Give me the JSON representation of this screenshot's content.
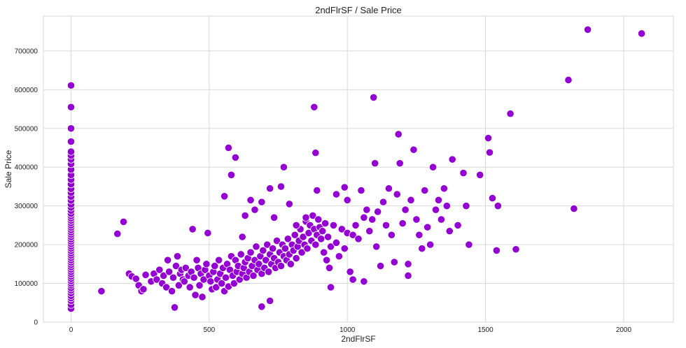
{
  "chart_data": {
    "type": "scatter",
    "title": "2ndFlrSF / Sale Price",
    "xlabel": "2ndFlrSF",
    "ylabel": "Sale Price",
    "xlim": [
      -100,
      2180
    ],
    "ylim": [
      0,
      790000
    ],
    "xticks": [
      "0",
      "500",
      "1000",
      "1500",
      "2000"
    ],
    "yticks": [
      "0",
      "100000",
      "200000",
      "300000",
      "400000",
      "500000",
      "600000",
      "700000"
    ],
    "grid": true,
    "color": "#9400D3",
    "series": [
      {
        "points": [
          [
            0,
            35000
          ],
          [
            0,
            45000
          ],
          [
            0,
            55000
          ],
          [
            0,
            62000
          ],
          [
            0,
            68000
          ],
          [
            0,
            75000
          ],
          [
            0,
            82000
          ],
          [
            0,
            88000
          ],
          [
            0,
            95000
          ],
          [
            0,
            100000
          ],
          [
            0,
            106000
          ],
          [
            0,
            112000
          ],
          [
            0,
            118000
          ],
          [
            0,
            124000
          ],
          [
            0,
            130000
          ],
          [
            0,
            136000
          ],
          [
            0,
            142000
          ],
          [
            0,
            148000
          ],
          [
            0,
            154000
          ],
          [
            0,
            160000
          ],
          [
            0,
            166000
          ],
          [
            0,
            172000
          ],
          [
            0,
            178000
          ],
          [
            0,
            184000
          ],
          [
            0,
            190000
          ],
          [
            0,
            196000
          ],
          [
            0,
            202000
          ],
          [
            0,
            208000
          ],
          [
            0,
            214000
          ],
          [
            0,
            220000
          ],
          [
            0,
            226000
          ],
          [
            0,
            232000
          ],
          [
            0,
            238000
          ],
          [
            0,
            244000
          ],
          [
            0,
            250000
          ],
          [
            0,
            256000
          ],
          [
            0,
            262000
          ],
          [
            0,
            268000
          ],
          [
            0,
            274000
          ],
          [
            0,
            280000
          ],
          [
            0,
            288000
          ],
          [
            0,
            296000
          ],
          [
            0,
            304000
          ],
          [
            0,
            314000
          ],
          [
            0,
            324000
          ],
          [
            0,
            334000
          ],
          [
            0,
            344000
          ],
          [
            0,
            356000
          ],
          [
            0,
            368000
          ],
          [
            0,
            380000
          ],
          [
            0,
            394000
          ],
          [
            0,
            408000
          ],
          [
            0,
            420000
          ],
          [
            0,
            430000
          ],
          [
            0,
            440000
          ],
          [
            0,
            466000
          ],
          [
            0,
            500000
          ],
          [
            0,
            555000
          ],
          [
            0,
            611000
          ],
          [
            110,
            80000
          ],
          [
            168,
            228000
          ],
          [
            190,
            259000
          ],
          [
            210,
            125000
          ],
          [
            220,
            118000
          ],
          [
            235,
            112000
          ],
          [
            245,
            95000
          ],
          [
            255,
            80000
          ],
          [
            262,
            85000
          ],
          [
            270,
            122000
          ],
          [
            290,
            105000
          ],
          [
            300,
            125000
          ],
          [
            310,
            110000
          ],
          [
            320,
            135000
          ],
          [
            330,
            100000
          ],
          [
            335,
            120000
          ],
          [
            345,
            90000
          ],
          [
            350,
            160000
          ],
          [
            355,
            130000
          ],
          [
            365,
            80000
          ],
          [
            370,
            115000
          ],
          [
            375,
            38000
          ],
          [
            380,
            145000
          ],
          [
            385,
            170000
          ],
          [
            390,
            95000
          ],
          [
            395,
            125000
          ],
          [
            400,
            135000
          ],
          [
            405,
            110000
          ],
          [
            410,
            105000
          ],
          [
            415,
            140000
          ],
          [
            425,
            120000
          ],
          [
            430,
            90000
          ],
          [
            435,
            130000
          ],
          [
            440,
            240000
          ],
          [
            445,
            115000
          ],
          [
            450,
            70000
          ],
          [
            455,
            160000
          ],
          [
            460,
            140000
          ],
          [
            465,
            95000
          ],
          [
            470,
            125000
          ],
          [
            475,
            65000
          ],
          [
            480,
            110000
          ],
          [
            485,
            135000
          ],
          [
            490,
            150000
          ],
          [
            495,
            230000
          ],
          [
            500,
            120000
          ],
          [
            505,
            105000
          ],
          [
            510,
            85000
          ],
          [
            515,
            130000
          ],
          [
            520,
            145000
          ],
          [
            525,
            90000
          ],
          [
            530,
            110000
          ],
          [
            535,
            160000
          ],
          [
            540,
            125000
          ],
          [
            545,
            100000
          ],
          [
            550,
            140000
          ],
          [
            555,
            80000
          ],
          [
            560,
            115000
          ],
          [
            565,
            150000
          ],
          [
            570,
            92000
          ],
          [
            575,
            135000
          ],
          [
            580,
            170000
          ],
          [
            585,
            120000
          ],
          [
            590,
            100000
          ],
          [
            595,
            160000
          ],
          [
            600,
            130000
          ],
          [
            605,
            145000
          ],
          [
            610,
            110000
          ],
          [
            615,
            175000
          ],
          [
            620,
            125000
          ],
          [
            625,
            140000
          ],
          [
            630,
            155000
          ],
          [
            635,
            115000
          ],
          [
            640,
            165000
          ],
          [
            645,
            130000
          ],
          [
            650,
            180000
          ],
          [
            655,
            145000
          ],
          [
            660,
            120000
          ],
          [
            665,
            160000
          ],
          [
            670,
            195000
          ],
          [
            675,
            135000
          ],
          [
            680,
            150000
          ],
          [
            685,
            170000
          ],
          [
            690,
            125000
          ],
          [
            695,
            185000
          ],
          [
            700,
            140000
          ],
          [
            705,
            160000
          ],
          [
            710,
            200000
          ],
          [
            715,
            130000
          ],
          [
            720,
            175000
          ],
          [
            725,
            150000
          ],
          [
            730,
            190000
          ],
          [
            735,
            165000
          ],
          [
            740,
            140000
          ],
          [
            745,
            210000
          ],
          [
            750,
            155000
          ],
          [
            755,
            180000
          ],
          [
            760,
            145000
          ],
          [
            765,
            200000
          ],
          [
            770,
            170000
          ],
          [
            775,
            190000
          ],
          [
            780,
            160000
          ],
          [
            785,
            215000
          ],
          [
            790,
            175000
          ],
          [
            795,
            150000
          ],
          [
            800,
            200000
          ],
          [
            805,
            185000
          ],
          [
            810,
            225000
          ],
          [
            815,
            165000
          ],
          [
            820,
            195000
          ],
          [
            825,
            210000
          ],
          [
            830,
            240000
          ],
          [
            835,
            180000
          ],
          [
            840,
            220000
          ],
          [
            845,
            200000
          ],
          [
            850,
            260000
          ],
          [
            855,
            190000
          ],
          [
            860,
            230000
          ],
          [
            865,
            250000
          ],
          [
            870,
            210000
          ],
          [
            875,
            275000
          ],
          [
            880,
            240000
          ],
          [
            885,
            200000
          ],
          [
            890,
            225000
          ],
          [
            895,
            265000
          ],
          [
            900,
            245000
          ],
          [
            905,
            215000
          ],
          [
            910,
            235000
          ],
          [
            915,
            180000
          ],
          [
            920,
            255000
          ],
          [
            925,
            160000
          ],
          [
            930,
            220000
          ],
          [
            935,
            140000
          ],
          [
            940,
            195000
          ],
          [
            950,
            250000
          ],
          [
            960,
            205000
          ],
          [
            970,
            170000
          ],
          [
            980,
            240000
          ],
          [
            990,
            190000
          ],
          [
            1000,
            230000
          ],
          [
            555,
            325000
          ],
          [
            570,
            450000
          ],
          [
            580,
            380000
          ],
          [
            595,
            425000
          ],
          [
            620,
            220000
          ],
          [
            630,
            275000
          ],
          [
            650,
            315000
          ],
          [
            665,
            290000
          ],
          [
            690,
            310000
          ],
          [
            720,
            345000
          ],
          [
            735,
            270000
          ],
          [
            760,
            350000
          ],
          [
            770,
            400000
          ],
          [
            790,
            305000
          ],
          [
            815,
            250000
          ],
          [
            850,
            270000
          ],
          [
            880,
            555000
          ],
          [
            885,
            437000
          ],
          [
            890,
            340000
          ],
          [
            960,
            330000
          ],
          [
            990,
            348000
          ],
          [
            1000,
            315000
          ],
          [
            1010,
            130000
          ],
          [
            1020,
            225000
          ],
          [
            1030,
            250000
          ],
          [
            1040,
            215000
          ],
          [
            1050,
            340000
          ],
          [
            1060,
            270000
          ],
          [
            1070,
            290000
          ],
          [
            1080,
            235000
          ],
          [
            1090,
            265000
          ],
          [
            1095,
            580000
          ],
          [
            1100,
            410000
          ],
          [
            1105,
            195000
          ],
          [
            1110,
            285000
          ],
          [
            1120,
            145000
          ],
          [
            1130,
            310000
          ],
          [
            1140,
            250000
          ],
          [
            1150,
            345000
          ],
          [
            1160,
            225000
          ],
          [
            1170,
            155000
          ],
          [
            1180,
            330000
          ],
          [
            1185,
            485000
          ],
          [
            1190,
            410000
          ],
          [
            1200,
            255000
          ],
          [
            1210,
            290000
          ],
          [
            1220,
            120000
          ],
          [
            1230,
            315000
          ],
          [
            1240,
            445000
          ],
          [
            1250,
            265000
          ],
          [
            1260,
            225000
          ],
          [
            1270,
            190000
          ],
          [
            1280,
            340000
          ],
          [
            1290,
            245000
          ],
          [
            1300,
            200000
          ],
          [
            1310,
            400000
          ],
          [
            1320,
            290000
          ],
          [
            1330,
            315000
          ],
          [
            1340,
            265000
          ],
          [
            1350,
            345000
          ],
          [
            1360,
            300000
          ],
          [
            1370,
            235000
          ],
          [
            1380,
            420000
          ],
          [
            1400,
            250000
          ],
          [
            1420,
            385000
          ],
          [
            1430,
            300000
          ],
          [
            1440,
            200000
          ],
          [
            1480,
            380000
          ],
          [
            1510,
            475000
          ],
          [
            1515,
            438000
          ],
          [
            1525,
            320000
          ],
          [
            1540,
            185000
          ],
          [
            1545,
            300000
          ],
          [
            1590,
            538000
          ],
          [
            1610,
            188000
          ],
          [
            1800,
            625000
          ],
          [
            1820,
            293000
          ],
          [
            1870,
            755000
          ],
          [
            2065,
            745000
          ],
          [
            690,
            40000
          ],
          [
            720,
            55000
          ],
          [
            1020,
            110000
          ],
          [
            1060,
            105000
          ],
          [
            1220,
            150000
          ],
          [
            940,
            90000
          ]
        ]
      }
    ]
  }
}
